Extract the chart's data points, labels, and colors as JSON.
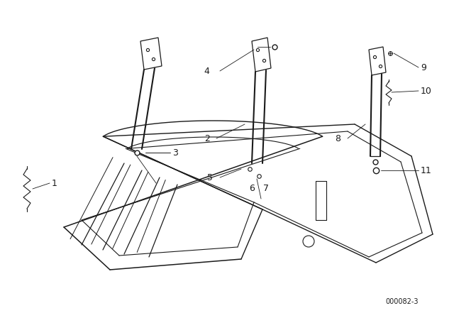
{
  "bg_color": "#ffffff",
  "line_color": "#1a1a1a",
  "diagram_code": "000082-3",
  "figsize": [
    6.4,
    4.48
  ],
  "dpi": 100
}
